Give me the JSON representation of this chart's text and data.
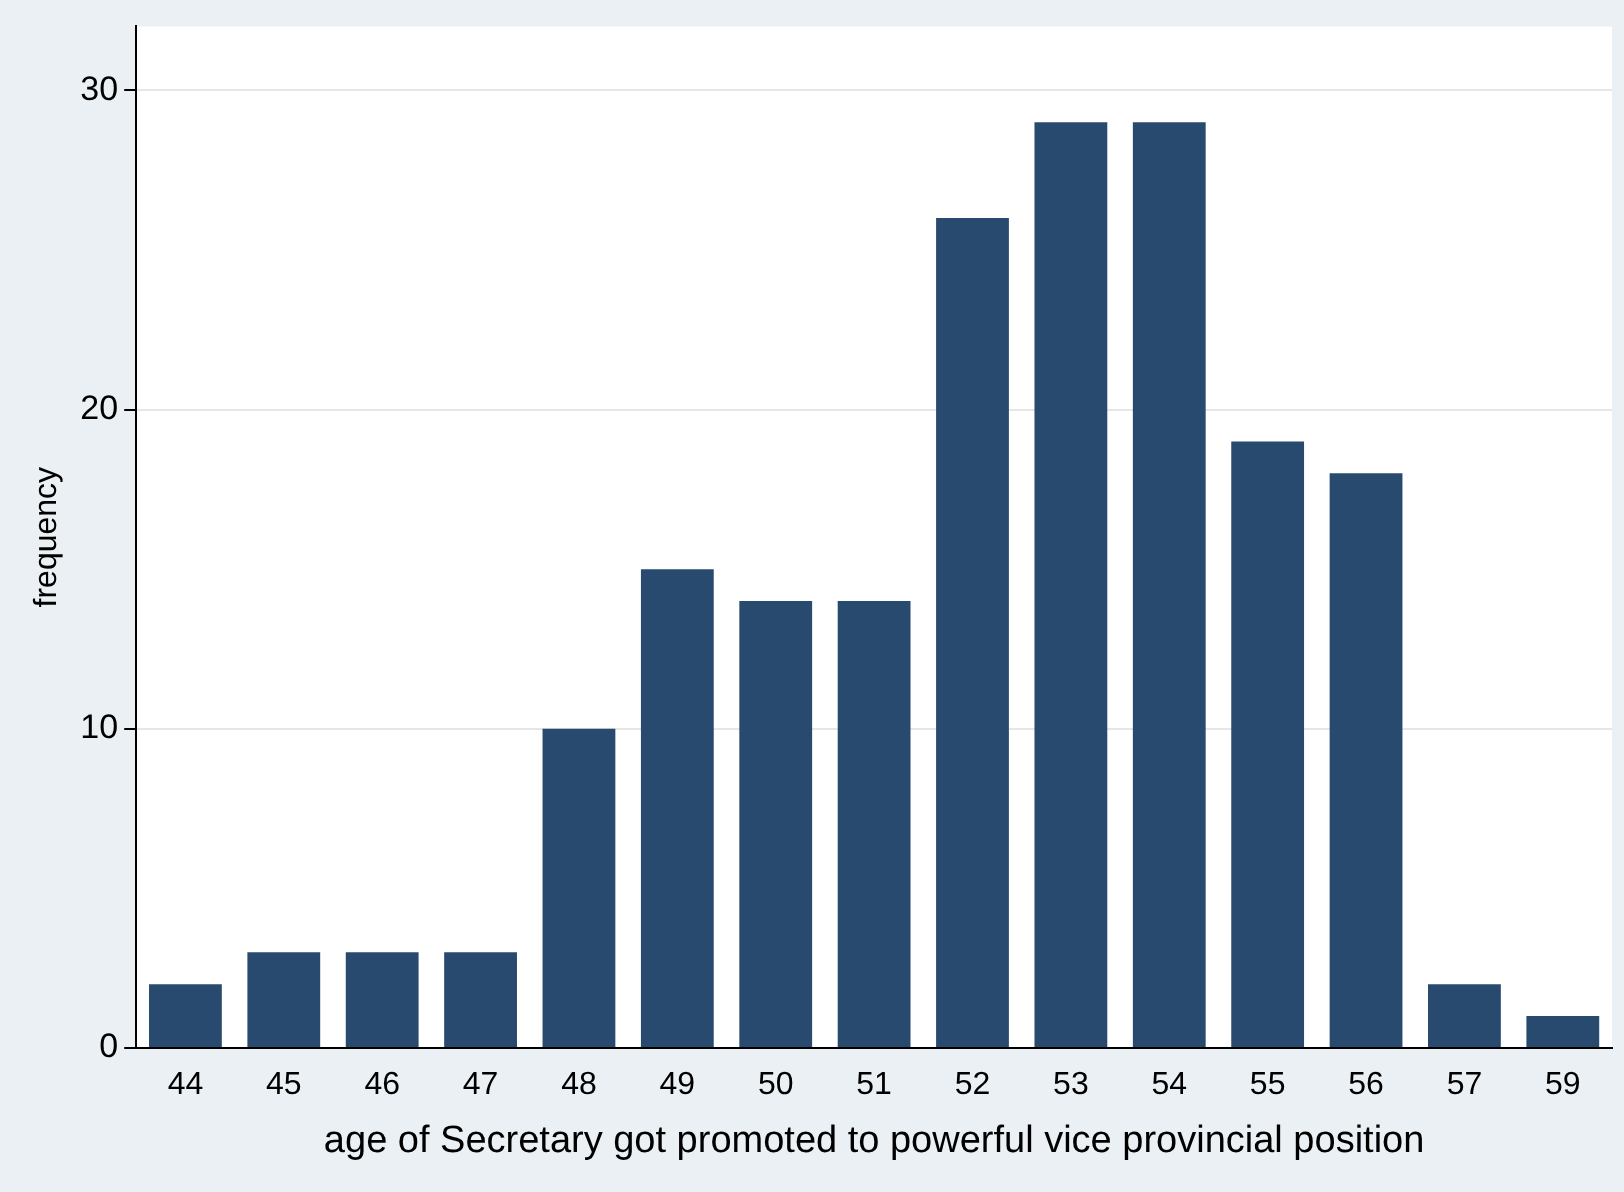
{
  "chart_data": {
    "type": "bar",
    "xlabel": "age of Secretary got promoted to powerful vice provincial position",
    "ylabel": "frequency",
    "categories": [
      "44",
      "45",
      "46",
      "47",
      "48",
      "49",
      "50",
      "51",
      "52",
      "53",
      "54",
      "55",
      "56",
      "57",
      "59"
    ],
    "values": [
      2,
      3,
      3,
      3,
      10,
      15,
      14,
      14,
      26,
      29,
      29,
      19,
      18,
      2,
      1
    ],
    "color": "#284a6e",
    "ylim": [
      0,
      32
    ],
    "yticks": [
      0,
      10,
      20,
      30
    ],
    "grid": "y",
    "legend": false
  }
}
